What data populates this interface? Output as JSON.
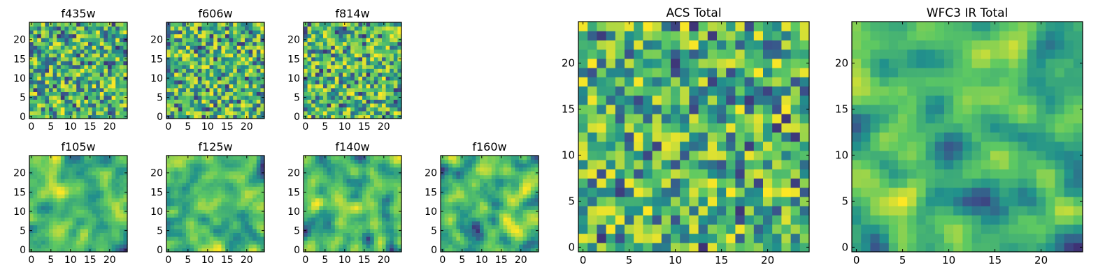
{
  "chart_data": [
    {
      "type": "heatmap",
      "title": "f435w",
      "grid": "25x25",
      "xticks": [
        "0",
        "5",
        "10",
        "15",
        "20"
      ],
      "yticks": [
        "0",
        "5",
        "10",
        "15",
        "20"
      ],
      "xlim": [
        0,
        25
      ],
      "ylim": [
        0,
        25
      ],
      "field": "noise",
      "seed": 11
    },
    {
      "type": "heatmap",
      "title": "f606w",
      "grid": "25x25",
      "xticks": [
        "0",
        "5",
        "10",
        "15",
        "20"
      ],
      "yticks": [
        "0",
        "5",
        "10",
        "15",
        "20"
      ],
      "xlim": [
        0,
        25
      ],
      "ylim": [
        0,
        25
      ],
      "field": "noise",
      "seed": 23
    },
    {
      "type": "heatmap",
      "title": "f814w",
      "grid": "25x25",
      "xticks": [
        "0",
        "5",
        "10",
        "15",
        "20"
      ],
      "yticks": [
        "0",
        "5",
        "10",
        "15",
        "20"
      ],
      "xlim": [
        0,
        25
      ],
      "ylim": [
        0,
        25
      ],
      "field": "noise",
      "seed": 37
    },
    {
      "type": "heatmap",
      "title": "f105w",
      "grid": "25x25",
      "xticks": [
        "0",
        "5",
        "10",
        "15",
        "20"
      ],
      "yticks": [
        "0",
        "5",
        "10",
        "15",
        "20"
      ],
      "xlim": [
        0,
        25
      ],
      "ylim": [
        0,
        25
      ],
      "field": "smooth",
      "seed": 41
    },
    {
      "type": "heatmap",
      "title": "f125w",
      "grid": "25x25",
      "xticks": [
        "0",
        "5",
        "10",
        "15",
        "20"
      ],
      "yticks": [
        "0",
        "5",
        "10",
        "15",
        "20"
      ],
      "xlim": [
        0,
        25
      ],
      "ylim": [
        0,
        25
      ],
      "field": "smooth",
      "seed": 53
    },
    {
      "type": "heatmap",
      "title": "f140w",
      "grid": "25x25",
      "xticks": [
        "0",
        "5",
        "10",
        "15",
        "20"
      ],
      "yticks": [
        "0",
        "5",
        "10",
        "15",
        "20"
      ],
      "xlim": [
        0,
        25
      ],
      "ylim": [
        0,
        25
      ],
      "field": "smooth",
      "seed": 67
    },
    {
      "type": "heatmap",
      "title": "f160w",
      "grid": "25x25",
      "xticks": [
        "0",
        "5",
        "10",
        "15",
        "20"
      ],
      "yticks": [
        "0",
        "5",
        "10",
        "15",
        "20"
      ],
      "xlim": [
        0,
        25
      ],
      "ylim": [
        0,
        25
      ],
      "field": "smooth",
      "seed": 79
    },
    {
      "type": "heatmap",
      "title": "ACS Total",
      "grid": "25x25",
      "xticks": [
        "0",
        "5",
        "10",
        "15",
        "20"
      ],
      "yticks": [
        "0",
        "5",
        "10",
        "15",
        "20"
      ],
      "xlim": [
        0,
        25
      ],
      "ylim": [
        0,
        25
      ],
      "field": "noise",
      "seed": 97
    },
    {
      "type": "heatmap",
      "title": "WFC3 IR Total",
      "grid": "25x25",
      "xticks": [
        "0",
        "5",
        "10",
        "15",
        "20"
      ],
      "yticks": [
        "0",
        "5",
        "10",
        "15",
        "20"
      ],
      "xlim": [
        0,
        25
      ],
      "ylim": [
        0,
        25
      ],
      "field": "smooth",
      "seed": 131
    }
  ],
  "colormap": [
    "#440154",
    "#3b528b",
    "#21918c",
    "#5ec962",
    "#fde725"
  ]
}
